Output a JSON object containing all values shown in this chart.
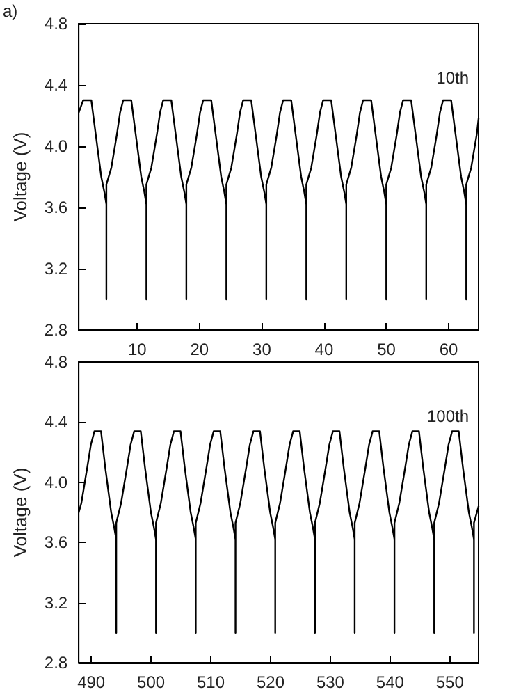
{
  "chart_data": [
    {
      "type": "line",
      "ylabel": "Voltage (V)",
      "annotations": [
        "a)",
        "10th"
      ],
      "xlim": [
        0.6,
        64.8
      ],
      "xticks": [
        10,
        20,
        30,
        40,
        50,
        60
      ],
      "ylim": [
        2.8,
        4.8
      ],
      "yticks": [
        2.8,
        3.2,
        3.6,
        {
          "value": 4,
          "label": "4.0"
        },
        4.4,
        4.8
      ],
      "marker": "none",
      "line_style": "solid",
      "series": [
        {
          "color": "#000000",
          "x": [
            0.6,
            1.32,
            2.62,
            3.32,
            4.22,
            4.72,
            5.04,
            5.04,
            5.04,
            5.84,
            6.74,
            7.24,
            7.74,
            9.04,
            9.74,
            10.64,
            11.14,
            11.46,
            11.46,
            11.46,
            12.26,
            13.16,
            13.66,
            14.16,
            15.46,
            16.16,
            17.06,
            17.56,
            17.88,
            17.88,
            17.88,
            18.68,
            19.58,
            20.08,
            20.58,
            21.88,
            22.58,
            23.48,
            23.98,
            24.3,
            24.3,
            24.3,
            25.1,
            26.0,
            26.5,
            27.0,
            28.3,
            29.0,
            29.9,
            30.4,
            30.72,
            30.72,
            30.72,
            31.52,
            32.42,
            32.92,
            33.42,
            34.72,
            35.42,
            36.32,
            36.82,
            37.14,
            37.14,
            37.14,
            37.94,
            38.84,
            39.34,
            39.84,
            41.14,
            41.84,
            42.74,
            43.24,
            43.56,
            43.56,
            43.56,
            44.36,
            45.26,
            45.76,
            46.26,
            47.56,
            48.26,
            49.16,
            49.66,
            49.98,
            49.98,
            49.98,
            50.78,
            51.68,
            52.18,
            52.68,
            53.98,
            54.68,
            55.58,
            56.08,
            56.4,
            56.4,
            56.4,
            57.2,
            58.1,
            58.6,
            59.1,
            60.4,
            61.1,
            62.0,
            62.5,
            62.82,
            62.82,
            62.82,
            63.62,
            64.52,
            64.8
          ],
          "values": [
            4.22,
            4.3,
            4.3,
            4.08,
            3.8,
            3.7,
            3.62,
            3.0,
            3.75,
            3.86,
            4.08,
            4.22,
            4.3,
            4.3,
            4.08,
            3.8,
            3.7,
            3.62,
            3.0,
            3.75,
            3.86,
            4.08,
            4.22,
            4.3,
            4.3,
            4.08,
            3.8,
            3.7,
            3.62,
            3.0,
            3.75,
            3.86,
            4.08,
            4.22,
            4.3,
            4.3,
            4.08,
            3.8,
            3.7,
            3.62,
            3.0,
            3.75,
            3.86,
            4.08,
            4.22,
            4.3,
            4.3,
            4.08,
            3.8,
            3.7,
            3.62,
            3.0,
            3.75,
            3.86,
            4.08,
            4.22,
            4.3,
            4.3,
            4.08,
            3.8,
            3.7,
            3.62,
            3.0,
            3.75,
            3.86,
            4.08,
            4.22,
            4.3,
            4.3,
            4.08,
            3.8,
            3.7,
            3.62,
            3.0,
            3.75,
            3.86,
            4.08,
            4.22,
            4.3,
            4.3,
            4.08,
            3.8,
            3.7,
            3.62,
            3.0,
            3.75,
            3.86,
            4.08,
            4.22,
            4.3,
            4.3,
            4.08,
            3.8,
            3.7,
            3.62,
            3.0,
            3.75,
            3.86,
            4.08,
            4.22,
            4.3,
            4.3,
            4.08,
            3.8,
            3.7,
            3.62,
            3.0,
            3.75,
            3.86,
            4.08,
            4.18
          ]
        }
      ]
    },
    {
      "type": "line",
      "ylabel": "Voltage (V)",
      "annotations": [
        "100th"
      ],
      "xlim": [
        487.9,
        554.8
      ],
      "xticks": [
        490,
        500,
        510,
        520,
        530,
        540,
        550
      ],
      "ylim": [
        2.8,
        4.8
      ],
      "yticks": [
        2.8,
        3.2,
        3.6,
        {
          "value": 4,
          "label": "4.0"
        },
        4.4,
        4.8
      ],
      "marker": "none",
      "line_style": "solid",
      "series": [
        {
          "color": "#000000",
          "x": [
            487.9,
            488.33,
            489.33,
            489.93,
            490.53,
            491.63,
            492.33,
            493.33,
            493.83,
            494.18,
            494.18,
            494.18,
            494.98,
            495.98,
            496.58,
            497.18,
            498.28,
            498.98,
            499.98,
            500.48,
            500.83,
            500.83,
            500.83,
            501.63,
            502.63,
            503.23,
            503.83,
            504.93,
            505.63,
            506.63,
            507.13,
            507.48,
            507.48,
            507.48,
            508.28,
            509.28,
            509.88,
            510.48,
            511.58,
            512.28,
            513.28,
            513.78,
            514.13,
            514.13,
            514.13,
            514.93,
            515.93,
            516.53,
            517.13,
            518.23,
            518.93,
            519.93,
            520.43,
            520.78,
            520.78,
            520.78,
            521.58,
            522.58,
            523.18,
            523.78,
            524.88,
            525.58,
            526.58,
            527.08,
            527.43,
            527.43,
            527.43,
            528.23,
            529.23,
            529.83,
            530.43,
            531.53,
            532.23,
            533.23,
            533.73,
            534.08,
            534.08,
            534.08,
            534.88,
            535.88,
            536.48,
            537.08,
            538.18,
            538.88,
            539.88,
            540.38,
            540.73,
            540.73,
            540.73,
            541.53,
            542.53,
            543.13,
            543.73,
            544.83,
            545.53,
            546.53,
            547.03,
            547.38,
            547.38,
            547.38,
            548.18,
            549.18,
            549.78,
            550.38,
            551.48,
            552.18,
            553.18,
            553.68,
            554.03,
            554.03,
            554.03,
            554.8
          ],
          "values": [
            3.8,
            3.86,
            4.1,
            4.25,
            4.34,
            4.34,
            4.1,
            3.8,
            3.7,
            3.62,
            3.0,
            3.73,
            3.86,
            4.1,
            4.25,
            4.34,
            4.34,
            4.1,
            3.8,
            3.7,
            3.62,
            3.0,
            3.73,
            3.86,
            4.1,
            4.25,
            4.34,
            4.34,
            4.1,
            3.8,
            3.7,
            3.62,
            3.0,
            3.73,
            3.86,
            4.1,
            4.25,
            4.34,
            4.34,
            4.1,
            3.8,
            3.7,
            3.62,
            3.0,
            3.73,
            3.86,
            4.1,
            4.25,
            4.34,
            4.34,
            4.1,
            3.8,
            3.7,
            3.62,
            3.0,
            3.73,
            3.86,
            4.1,
            4.25,
            4.34,
            4.34,
            4.1,
            3.8,
            3.7,
            3.62,
            3.0,
            3.73,
            3.86,
            4.1,
            4.25,
            4.34,
            4.34,
            4.1,
            3.8,
            3.7,
            3.62,
            3.0,
            3.73,
            3.86,
            4.1,
            4.25,
            4.34,
            4.34,
            4.1,
            3.8,
            3.7,
            3.62,
            3.0,
            3.73,
            3.86,
            4.1,
            4.25,
            4.34,
            4.34,
            4.1,
            3.8,
            3.7,
            3.62,
            3.0,
            3.73,
            3.86,
            4.1,
            4.25,
            4.34,
            4.34,
            4.1,
            3.8,
            3.7,
            3.62,
            3.0,
            3.73,
            3.84
          ]
        }
      ]
    }
  ]
}
